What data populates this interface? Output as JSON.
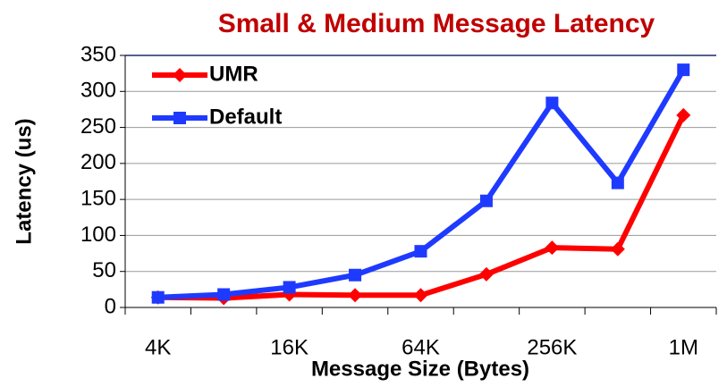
{
  "chart_data": {
    "type": "line",
    "title": "Small & Medium Message Latency",
    "xlabel": "Message Size (Bytes)",
    "ylabel": "Latency  (us)",
    "categories": [
      "4K",
      null,
      "16K",
      null,
      "64K",
      null,
      "256K",
      null,
      "1M"
    ],
    "series": [
      {
        "name": "UMR",
        "color": "#ff0000",
        "marker": "diamond",
        "values": [
          14,
          13,
          18,
          17,
          17,
          46,
          83,
          81,
          267
        ]
      },
      {
        "name": "Default",
        "color": "#1f3aff",
        "marker": "square",
        "values": [
          14,
          18,
          28,
          45,
          78,
          148,
          284,
          173,
          330
        ]
      }
    ],
    "ylim": [
      0,
      350
    ],
    "yticks": [
      0,
      50,
      100,
      150,
      200,
      250,
      300,
      350
    ],
    "grid": true,
    "legend": "top-left"
  }
}
